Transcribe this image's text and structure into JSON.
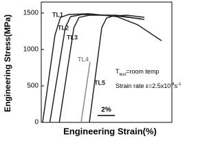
{
  "chart_data": {
    "type": "line",
    "xlabel": "Engineering Strain(%)",
    "ylabel": "Engineering Stress(MPa)",
    "xlim": [
      0,
      15.2
    ],
    "ylim": [
      0,
      1650
    ],
    "yticks": [
      0,
      500,
      1000,
      1500
    ],
    "series": [
      {
        "name": "TL1",
        "color": "#222222",
        "x": [
          0.16,
          1.6,
          2.24,
          3.2,
          5.6,
          8.8,
          11.2,
          14
        ],
        "values": [
          0,
          1200,
          1440,
          1480,
          1490,
          1450,
          1340,
          1120
        ]
      },
      {
        "name": "TL2",
        "color": "#222222",
        "x": [
          1.0,
          2.8,
          3.4,
          4.8,
          8,
          11.6
        ],
        "values": [
          0,
          1300,
          1450,
          1480,
          1470,
          1420
        ]
      },
      {
        "name": "TL3",
        "color": "#222222",
        "x": [
          2.1,
          3.8,
          4.4,
          5.6,
          8.8,
          12
        ],
        "values": [
          0,
          1300,
          1440,
          1470,
          1470,
          1410
        ]
      },
      {
        "name": "TL4",
        "color": "#888888",
        "x": [
          4.64,
          5.68
        ],
        "values": [
          0,
          830
        ]
      },
      {
        "name": "TL5",
        "color": "#222222",
        "x": [
          5.6,
          7.04,
          7.6,
          8.4,
          10,
          12
        ],
        "values": [
          0,
          1300,
          1430,
          1460,
          1470,
          1440
        ]
      }
    ],
    "annotations": {
      "test_temp": [
        "T",
        "test",
        "=room temp"
      ],
      "strain_rate": [
        "Strain rate ε=2.5x10",
        "-4",
        "s",
        "-1"
      ]
    },
    "scale_bar": {
      "label": "2%",
      "length": 2
    }
  }
}
